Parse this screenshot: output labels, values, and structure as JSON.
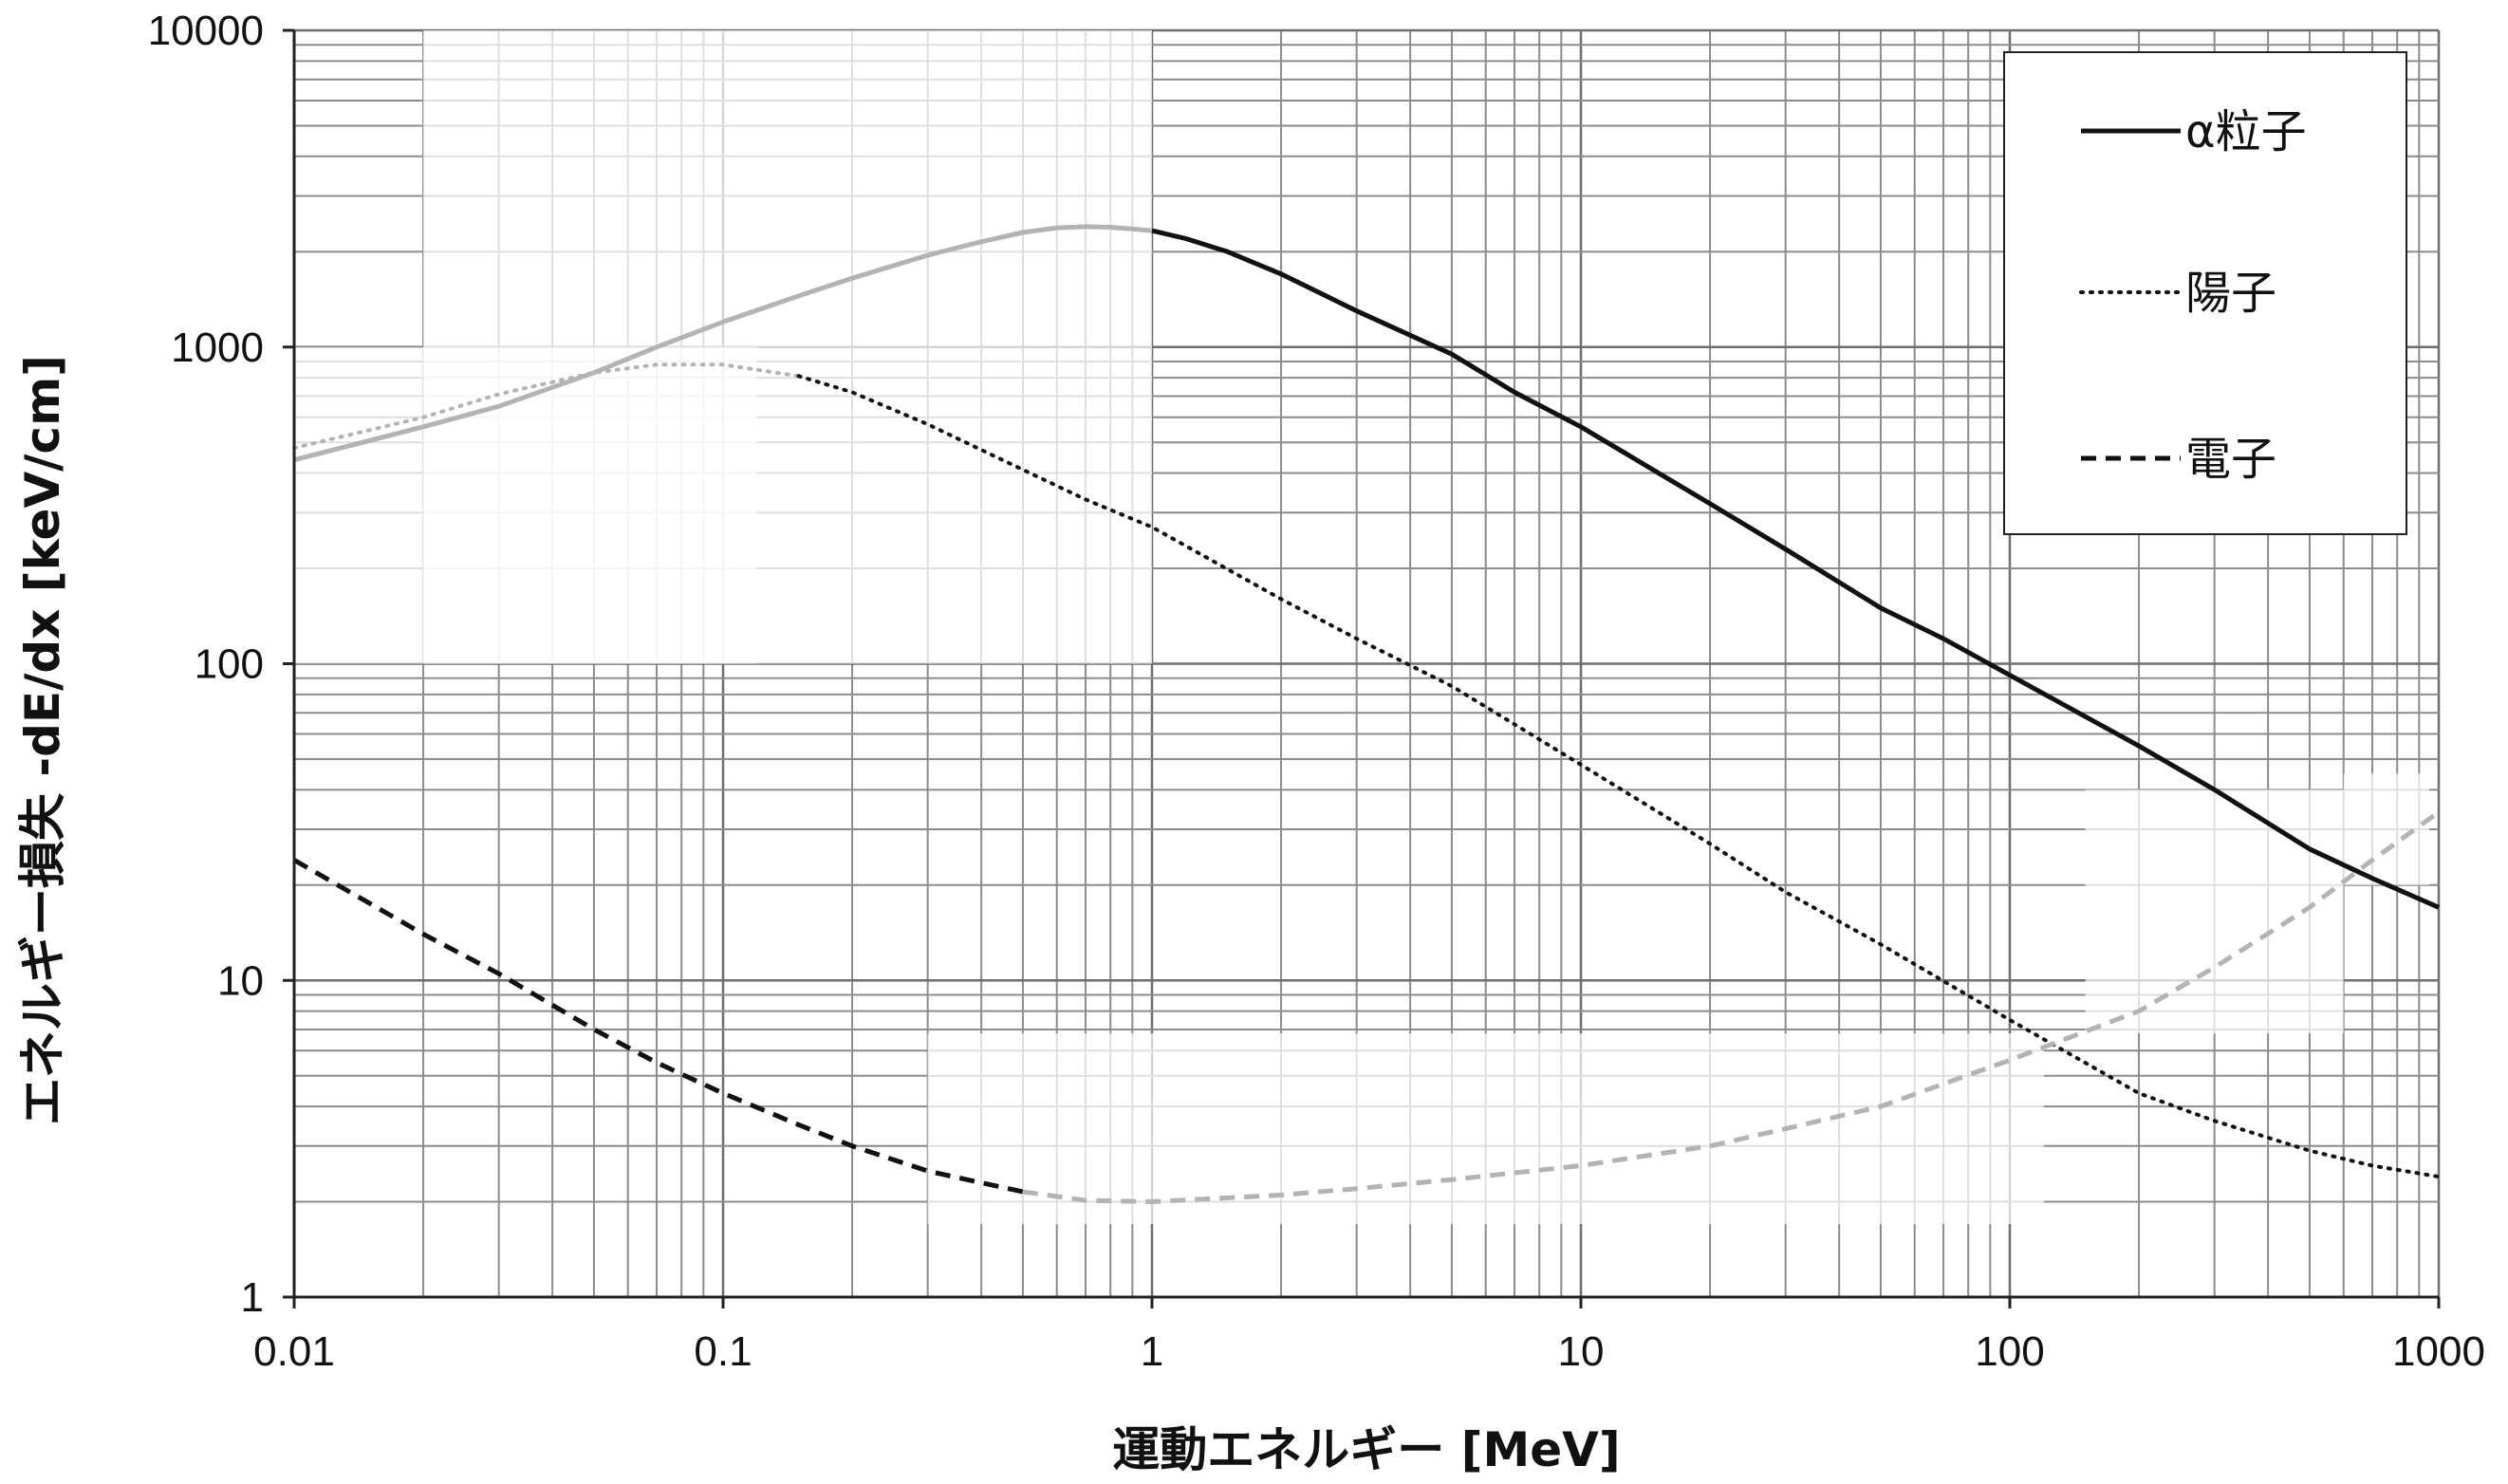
{
  "chart_data": {
    "type": "line",
    "xscale": "log",
    "yscale": "log",
    "xlim": [
      0.01,
      1000
    ],
    "ylim": [
      1,
      10000
    ],
    "grid": true,
    "legend_position": "top-right",
    "xlabel": "運動エネルギー [MeV]",
    "ylabel": "エネルギー損失 -dE/dx [keV/cm]",
    "x_ticks": [
      "0.01",
      "0.1",
      "1",
      "10",
      "100",
      "1000"
    ],
    "y_ticks": [
      "1",
      "10",
      "100",
      "1000",
      "10000"
    ],
    "series": [
      {
        "name": "α粒子",
        "style": "solid",
        "color": "#111111",
        "faded_color": "#b3b3b3",
        "faded_below_x": 1,
        "x": [
          0.01,
          0.02,
          0.03,
          0.05,
          0.07,
          0.1,
          0.15,
          0.2,
          0.3,
          0.4,
          0.5,
          0.6,
          0.7,
          0.8,
          0.9,
          1,
          1.2,
          1.5,
          2,
          3,
          5,
          7,
          10,
          20,
          30,
          50,
          70,
          100,
          200,
          300,
          500,
          700,
          1000
        ],
        "y": [
          440,
          560,
          650,
          830,
          1000,
          1200,
          1450,
          1650,
          1950,
          2150,
          2300,
          2380,
          2400,
          2390,
          2360,
          2330,
          2200,
          2000,
          1700,
          1300,
          950,
          720,
          560,
          320,
          230,
          150,
          120,
          92,
          55,
          40,
          26,
          21,
          17
        ]
      },
      {
        "name": "陽子",
        "style": "dotted",
        "color": "#111111",
        "faded_color": "#b3b3b3",
        "faded_below_x": 0.12,
        "x": [
          0.01,
          0.02,
          0.03,
          0.05,
          0.07,
          0.1,
          0.15,
          0.2,
          0.3,
          0.5,
          0.7,
          1,
          2,
          3,
          5,
          10,
          20,
          30,
          50,
          100,
          200,
          300,
          500,
          700,
          1000
        ],
        "y": [
          480,
          600,
          710,
          830,
          880,
          880,
          810,
          720,
          570,
          410,
          330,
          270,
          160,
          120,
          85,
          48,
          27,
          19,
          13,
          7.5,
          4.4,
          3.6,
          2.9,
          2.6,
          2.4
        ]
      },
      {
        "name": "電子",
        "style": "dashed",
        "color": "#111111",
        "faded_color": "#b3b3b3",
        "faded_above_x": 0.3,
        "x": [
          0.01,
          0.02,
          0.03,
          0.05,
          0.07,
          0.1,
          0.15,
          0.2,
          0.3,
          0.5,
          0.7,
          1,
          2,
          3,
          5,
          10,
          20,
          30,
          50,
          100,
          200,
          300,
          500,
          700,
          1000
        ],
        "y": [
          24,
          14,
          10.5,
          7,
          5.5,
          4.4,
          3.5,
          3.0,
          2.5,
          2.15,
          2.02,
          2.0,
          2.1,
          2.2,
          2.35,
          2.6,
          3.0,
          3.4,
          4.0,
          5.6,
          8.0,
          11,
          17,
          24,
          34
        ]
      }
    ]
  }
}
